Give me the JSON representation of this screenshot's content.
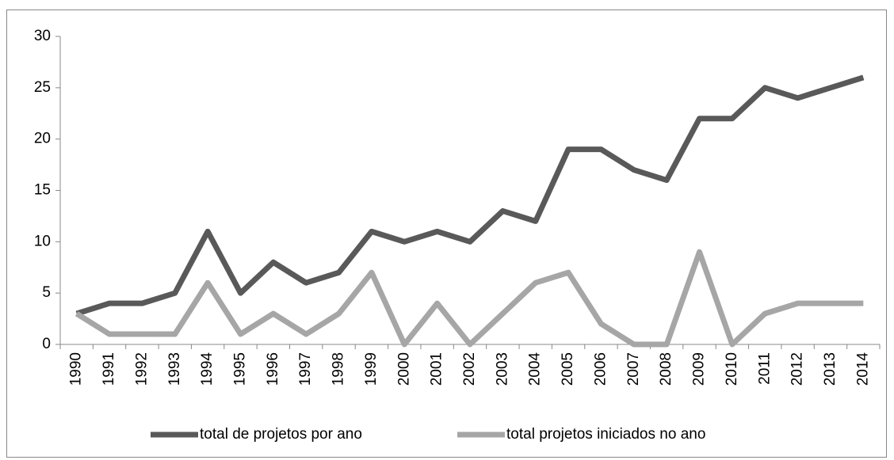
{
  "chart_data": {
    "type": "line",
    "categories": [
      "1990",
      "1991",
      "1992",
      "1993",
      "1994",
      "1995",
      "1996",
      "1997",
      "1998",
      "1999",
      "2000",
      "2001",
      "2002",
      "2003",
      "2004",
      "2005",
      "2006",
      "2007",
      "2008",
      "2009",
      "2010",
      "2011",
      "2012",
      "2013",
      "2014"
    ],
    "series": [
      {
        "name": "total de projetos por ano",
        "color": "#595959",
        "values": [
          3,
          4,
          4,
          5,
          11,
          5,
          8,
          6,
          7,
          11,
          10,
          11,
          10,
          13,
          12,
          19,
          19,
          17,
          16,
          22,
          22,
          25,
          24,
          25,
          26
        ]
      },
      {
        "name": "total projetos iniciados no ano",
        "color": "#a6a6a6",
        "values": [
          3,
          1,
          1,
          1,
          6,
          1,
          3,
          1,
          3,
          7,
          0,
          4,
          0,
          3,
          6,
          7,
          2,
          0,
          0,
          9,
          0,
          3,
          4,
          4,
          4
        ]
      }
    ],
    "ylim": [
      0,
      30
    ],
    "yticks": [
      0,
      5,
      10,
      15,
      20,
      25,
      30
    ],
    "grid": false,
    "legend": "bottom"
  }
}
